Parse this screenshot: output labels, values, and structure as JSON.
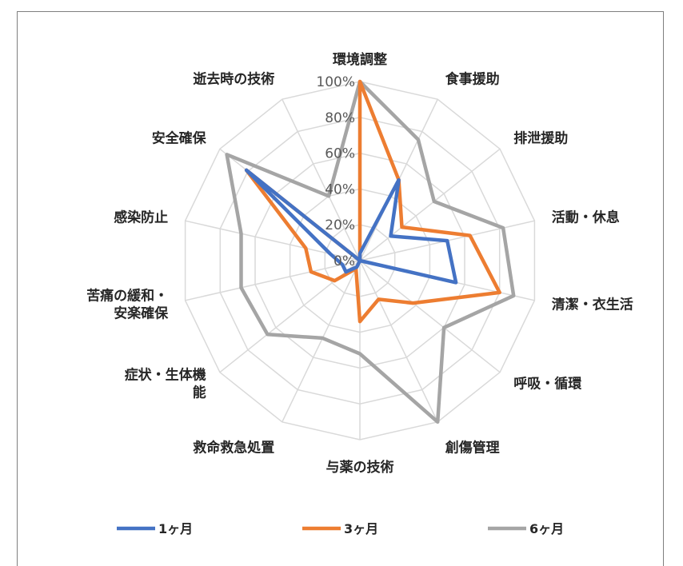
{
  "chart_data": {
    "type": "radar",
    "categories": [
      "環境調整",
      "食事援助",
      "排泄援助",
      "活動・休息",
      "清潔・衣生活",
      "呼吸・循環",
      "創傷管理",
      "与薬の技術",
      "救命救急処置",
      "症状・生体機能",
      "苦痛の緩和・安楽確保",
      "感染防止",
      "安全確保",
      "逝去時の技術"
    ],
    "category_lines": [
      [
        "環境調整"
      ],
      [
        "食事援助"
      ],
      [
        "排泄援助"
      ],
      [
        "活動・休息"
      ],
      [
        "清潔・衣生活"
      ],
      [
        "呼吸・循環"
      ],
      [
        "創傷管理"
      ],
      [
        "与薬の技術"
      ],
      [
        "救命救急処置"
      ],
      [
        "症状・生体機",
        "能"
      ],
      [
        "苦痛の緩和・",
        "安楽確保"
      ],
      [
        "感染防止"
      ],
      [
        "安全確保"
      ],
      [
        "逝去時の技術"
      ]
    ],
    "tick_labels": [
      "0%",
      "20%",
      "40%",
      "60%",
      "80%",
      "100%"
    ],
    "rlim": [
      0,
      100
    ],
    "grid": true,
    "legend_position": "bottom",
    "series": [
      {
        "name": "1ヶ月",
        "color": "#4472C4",
        "values": [
          4,
          50,
          22,
          50,
          55,
          0,
          0,
          0,
          4,
          10,
          10,
          17,
          81,
          0
        ]
      },
      {
        "name": "3ヶ月",
        "color": "#ED7D31",
        "values": [
          100,
          50,
          30,
          63,
          80,
          38,
          24,
          34,
          5,
          18,
          28,
          31,
          81,
          0
        ]
      },
      {
        "name": "6ヶ月",
        "color": "#A5A5A5",
        "values": [
          100,
          75,
          53,
          82,
          88,
          60,
          100,
          52,
          48,
          66,
          68,
          68,
          95,
          40
        ]
      }
    ]
  }
}
